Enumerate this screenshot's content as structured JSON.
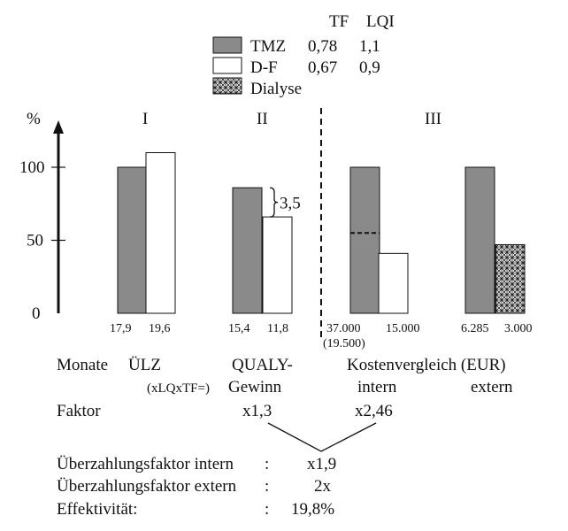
{
  "chart_data": {
    "type": "bar",
    "y_axis": {
      "unit_label": "%",
      "ticks": [
        0,
        50,
        100
      ],
      "ylim": [
        0,
        110
      ]
    },
    "legend": {
      "placement": "top-center",
      "column_headers": [
        "TF",
        "LQI"
      ],
      "entries": [
        {
          "name": "TMZ",
          "pattern": "solid-gray",
          "tf": "0,78",
          "lqi": "1,1"
        },
        {
          "name": "D-F",
          "pattern": "white",
          "tf": "0,67",
          "lqi": "0,9"
        },
        {
          "name": "Dialyse",
          "pattern": "crosshatch",
          "tf": "",
          "lqi": ""
        }
      ]
    },
    "groups": [
      {
        "label": "I",
        "bars": [
          {
            "series": "TMZ",
            "value": 100,
            "label": "17,9"
          },
          {
            "series": "D-F",
            "value": 110,
            "label": "19,6"
          }
        ]
      },
      {
        "label": "II",
        "bars": [
          {
            "series": "TMZ",
            "value": 86,
            "label": "15,4"
          },
          {
            "series": "D-F",
            "value": 66,
            "label": "11,8"
          }
        ],
        "bracket_label": "3,5"
      },
      {
        "label": "III",
        "bars": [
          {
            "series": "TMZ",
            "value": 100,
            "label": "37.000",
            "sublabel": "(19.500)",
            "marker_value": 55
          },
          {
            "series": "D-F",
            "value": 41,
            "label": "15.000"
          },
          {
            "series": "TMZ",
            "value": 100,
            "label": "6.285"
          },
          {
            "series": "Dialyse",
            "value": 47,
            "label": "3.000"
          }
        ]
      }
    ],
    "colors": {
      "tmz": "#8a8a8a",
      "df": "#ffffff",
      "dialyse": "#bdbdbd",
      "axis": "#111111"
    }
  },
  "info": {
    "row1": {
      "monate": "Monate",
      "uelz": "ÜLZ",
      "qualy": "QUALY-",
      "kosten": "Kostenvergleich (EUR)"
    },
    "row2": {
      "formula": "(xLQxTF=)",
      "gewinn": "Gewinn",
      "intern": "intern",
      "extern": "extern"
    },
    "row3": {
      "faktor": "Faktor",
      "f1": "x1,3",
      "f2": "x2,46"
    },
    "summary": [
      {
        "label": "Überzahlungsfaktor intern",
        "colon": ":",
        "value": "x1,9"
      },
      {
        "label": "Überzahlungsfaktor extern",
        "colon": ":",
        "value": "2x"
      },
      {
        "label": "Effektivität:",
        "colon": ":",
        "value": "19,8%"
      }
    ]
  }
}
